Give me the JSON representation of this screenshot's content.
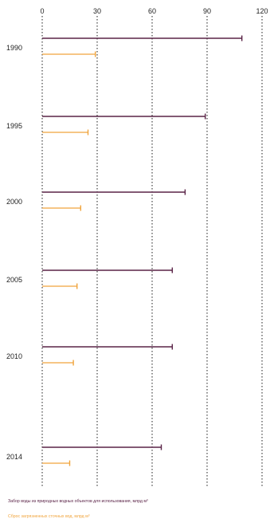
{
  "chart_data": {
    "type": "bar",
    "orientation": "horizontal",
    "categories": [
      "1990",
      "1995",
      "2000",
      "2005",
      "2010",
      "2014"
    ],
    "x_ticks": [
      "0",
      "30",
      "60",
      "90",
      "120"
    ],
    "xlim": [
      0,
      120
    ],
    "grid": "dotted vertical lines at ticks",
    "legend_position": "bottom",
    "series": [
      {
        "name": "Забор воды из природных водных объектов для использования, млрд м³",
        "color": "#5a2347",
        "values": [
          109,
          89,
          78,
          71,
          71,
          65
        ]
      },
      {
        "name": "Сброс загрязненных сточных вод, млрд м³",
        "color": "#f0a43c",
        "values": [
          29,
          25,
          21,
          19,
          17,
          15
        ]
      }
    ]
  }
}
